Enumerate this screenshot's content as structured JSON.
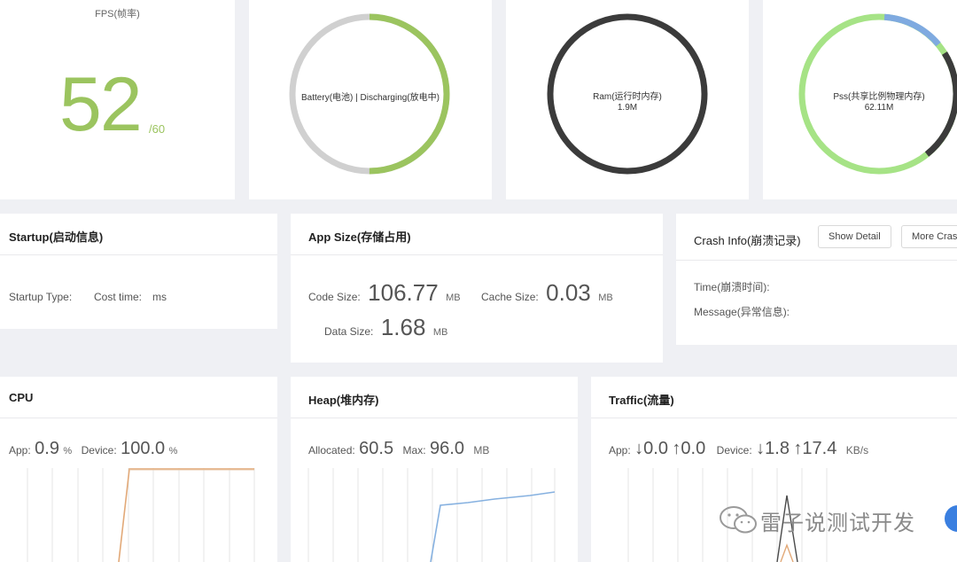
{
  "fps": {
    "title": "FPS(帧率)",
    "value": "52",
    "max": "/60",
    "value_color": "#9bc45f"
  },
  "battery": {
    "label": "Battery(电池) | Discharging(放电中)",
    "level": 0.5,
    "colors": {
      "fill": "#9bc45f",
      "track": "#d0d0d0"
    }
  },
  "ram": {
    "label": "Ram(运行时内存)",
    "value": "1.9M",
    "ring_color": "#3b3b3b"
  },
  "pss": {
    "label": "Pss(共享比例物理内存)",
    "value": "62.11M",
    "colors": {
      "main": "#a6e386",
      "accent": "#7faae0",
      "dark": "#3b3b3b"
    }
  },
  "startup": {
    "title": "Startup(启动信息)",
    "type_label": "Startup Type:",
    "cost_label": "Cost time:",
    "cost_unit": "ms"
  },
  "app_size": {
    "title": "App Size(存储占用)",
    "code_label": "Code Size:",
    "code_value": "106.77",
    "code_unit": "MB",
    "cache_label": "Cache Size:",
    "cache_value": "0.03",
    "cache_unit": "MB",
    "data_label": "Data Size:",
    "data_value": "1.68",
    "data_unit": "MB"
  },
  "crash": {
    "title": "Crash Info(崩溃记录)",
    "show_detail_label": "Show Detail",
    "more_label": "More Cras",
    "time_label": "Time(崩溃时间):",
    "message_label": "Message(异常信息):"
  },
  "cpu": {
    "title": "CPU",
    "app_label": "App:",
    "app_value": "0.9",
    "app_unit": "%",
    "device_label": "Device:",
    "device_value": "100.0",
    "device_unit": "%",
    "line_color": "#e2a978"
  },
  "heap": {
    "title": "Heap(堆内存)",
    "allocated_label": "Allocated:",
    "allocated_value": "60.5",
    "max_label": "Max:",
    "max_value": "96.0",
    "unit": "MB",
    "line_color": "#86b1e0"
  },
  "traffic": {
    "title": "Traffic(流量)",
    "app_label": "App:",
    "app_down": "↓0.0",
    "app_up": "↑0.0",
    "device_label": "Device:",
    "device_down": "↓1.8",
    "device_up": "↑17.4",
    "unit": "KB/s",
    "line_colors": {
      "primary": "#4a4a4a",
      "secondary": "#e2a978"
    }
  },
  "watermark": {
    "text": "雷子说测试开发"
  }
}
